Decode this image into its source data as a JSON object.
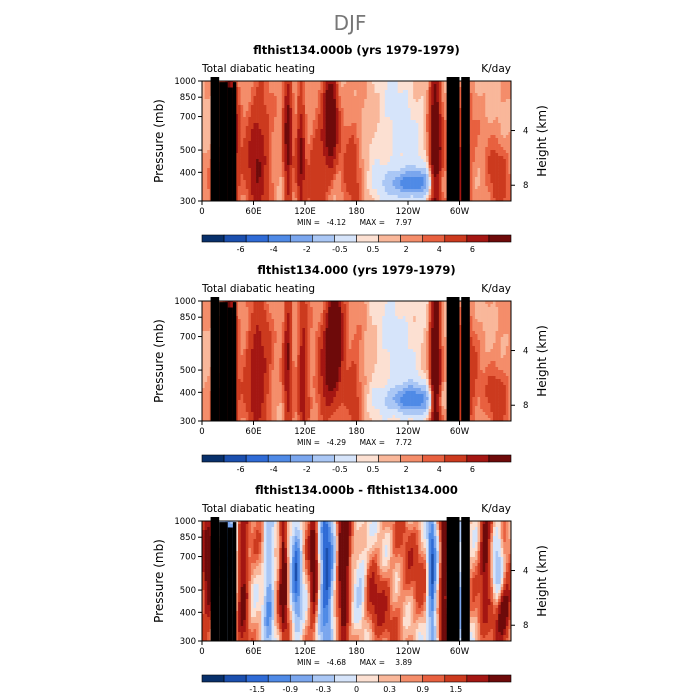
{
  "figure": {
    "title": "DJF"
  },
  "colors": {
    "scale12": [
      "#08306b",
      "#1b4fae",
      "#2f6bd6",
      "#4f8ae6",
      "#7aa6ee",
      "#aac7f5",
      "#d6e4fa",
      "#fce0d2",
      "#f9b79a",
      "#f48d6a",
      "#e8603f",
      "#cc3a1e",
      "#a41612",
      "#6e0a0a"
    ],
    "terrain": "#000000"
  },
  "chart_data": [
    {
      "id": "panel-1",
      "type": "heatmap",
      "title": "flthist134.000b (yrs 1979-1979)",
      "left_label": "Total diabatic heating",
      "right_label": "K/day",
      "xlabel": "",
      "ylabel": "Pressure (mb)",
      "y2label": "Height (km)",
      "x_range": [
        0,
        360
      ],
      "x_ticks": [
        60,
        120,
        180,
        240,
        300
      ],
      "x_tick_labels": [
        "0",
        "60E",
        "120E",
        "180",
        "120W",
        "60W"
      ],
      "y_ticks": [
        1000,
        850,
        700,
        500,
        400,
        300
      ],
      "y_tick_labels": [
        "1000",
        "850",
        "700",
        "500",
        "400",
        "300"
      ],
      "y2_ticks": [
        4,
        8
      ],
      "y2_tick_labels": [
        "4",
        "8"
      ],
      "min_label": "MIN =",
      "min_value": "-4.12",
      "max_label": "MAX =",
      "max_value": "7.97",
      "colorbar_levels": [
        -7,
        -6,
        -5,
        -4,
        -3,
        -2,
        -1,
        -0.5,
        0,
        0.5,
        1,
        2,
        3,
        4,
        5,
        6,
        7
      ],
      "colorbar_labels": [
        "-6",
        "-4",
        "-2",
        "-0.5",
        "0.5",
        "2",
        "4",
        "6"
      ],
      "features": [
        {
          "lon": 32,
          "lev": 0.4,
          "w": 9,
          "h": 0.9,
          "amp": 4.5
        },
        {
          "lon": 20,
          "lev": 0.15,
          "w": 8,
          "h": 0.25,
          "amp": 3.0
        },
        {
          "lon": 65,
          "lev": 0.35,
          "w": 14,
          "h": 0.55,
          "amp": 3.0
        },
        {
          "lon": 100,
          "lev": 0.55,
          "w": 5,
          "h": 0.7,
          "amp": 3.5
        },
        {
          "lon": 115,
          "lev": 0.4,
          "w": 5,
          "h": 0.6,
          "amp": 3.0
        },
        {
          "lon": 150,
          "lev": 0.7,
          "w": 8,
          "h": 0.4,
          "amp": 5.0
        },
        {
          "lon": 135,
          "lev": 0.3,
          "w": 12,
          "h": 0.4,
          "amp": 2.0
        },
        {
          "lon": 175,
          "lev": 0.3,
          "w": 12,
          "h": 0.5,
          "amp": 1.5
        },
        {
          "lon": 245,
          "lev": 0.15,
          "w": 30,
          "h": 0.12,
          "amp": -4.0
        },
        {
          "lon": 272,
          "lev": 0.4,
          "w": 7,
          "h": 0.9,
          "amp": 5.0
        },
        {
          "lon": 300,
          "lev": 0.3,
          "w": 14,
          "h": 0.5,
          "amp": 2.5
        },
        {
          "lon": 345,
          "lev": 0.2,
          "w": 14,
          "h": 0.3,
          "amp": 1.5
        },
        {
          "lon": 230,
          "lev": 0.55,
          "w": 38,
          "h": 0.8,
          "amp": -1.2
        }
      ],
      "terrain": [
        {
          "lon_start": 10,
          "lon_end": 20,
          "top": 1000
        },
        {
          "lon_start": 20,
          "lon_end": 30,
          "top": 950
        },
        {
          "lon_start": 30,
          "lon_end": 36,
          "top": 900
        },
        {
          "lon_start": 36,
          "lon_end": 40,
          "top": 950
        },
        {
          "lon_start": 285,
          "lon_end": 300,
          "top": 1000
        },
        {
          "lon_start": 302,
          "lon_end": 312,
          "top": 1000
        }
      ]
    },
    {
      "id": "panel-2",
      "type": "heatmap",
      "title": "flthist134.000 (yrs 1979-1979)",
      "left_label": "Total diabatic heating",
      "right_label": "K/day",
      "xlabel": "",
      "ylabel": "Pressure (mb)",
      "y2label": "Height (km)",
      "x_range": [
        0,
        360
      ],
      "x_ticks": [
        60,
        120,
        180,
        240,
        300
      ],
      "x_tick_labels": [
        "0",
        "60E",
        "120E",
        "180",
        "120W",
        "60W"
      ],
      "y_ticks": [
        1000,
        850,
        700,
        500,
        400,
        300
      ],
      "y_tick_labels": [
        "1000",
        "850",
        "700",
        "500",
        "400",
        "300"
      ],
      "y2_ticks": [
        4,
        8
      ],
      "y2_tick_labels": [
        "4",
        "8"
      ],
      "min_label": "MIN =",
      "min_value": "-4.29",
      "max_label": "MAX =",
      "max_value": "7.72",
      "colorbar_levels": [
        -7,
        -6,
        -5,
        -4,
        -3,
        -2,
        -1,
        -0.5,
        0,
        0.5,
        1,
        2,
        3,
        4,
        5,
        6,
        7
      ],
      "colorbar_labels": [
        "-6",
        "-4",
        "-2",
        "-0.5",
        "0.5",
        "2",
        "4",
        "6"
      ],
      "features": [
        {
          "lon": 32,
          "lev": 0.45,
          "w": 8,
          "h": 0.95,
          "amp": 4.5
        },
        {
          "lon": 20,
          "lev": 0.15,
          "w": 8,
          "h": 0.25,
          "amp": 2.5
        },
        {
          "lon": 65,
          "lev": 0.4,
          "w": 14,
          "h": 0.55,
          "amp": 3.0
        },
        {
          "lon": 100,
          "lev": 0.55,
          "w": 5,
          "h": 0.7,
          "amp": 3.0
        },
        {
          "lon": 118,
          "lev": 0.4,
          "w": 6,
          "h": 0.6,
          "amp": 3.0
        },
        {
          "lon": 155,
          "lev": 0.75,
          "w": 9,
          "h": 0.4,
          "amp": 6.0
        },
        {
          "lon": 145,
          "lev": 0.35,
          "w": 12,
          "h": 0.4,
          "amp": 2.5
        },
        {
          "lon": 178,
          "lev": 0.3,
          "w": 12,
          "h": 0.5,
          "amp": 1.5
        },
        {
          "lon": 245,
          "lev": 0.18,
          "w": 30,
          "h": 0.12,
          "amp": -4.0
        },
        {
          "lon": 272,
          "lev": 0.45,
          "w": 6,
          "h": 0.95,
          "amp": 5.5
        },
        {
          "lon": 305,
          "lev": 0.3,
          "w": 14,
          "h": 0.5,
          "amp": 2.5
        },
        {
          "lon": 345,
          "lev": 0.2,
          "w": 14,
          "h": 0.3,
          "amp": 1.5
        },
        {
          "lon": 230,
          "lev": 0.6,
          "w": 38,
          "h": 0.8,
          "amp": -1.2
        }
      ],
      "terrain": [
        {
          "lon_start": 10,
          "lon_end": 20,
          "top": 1000
        },
        {
          "lon_start": 20,
          "lon_end": 30,
          "top": 950
        },
        {
          "lon_start": 30,
          "lon_end": 36,
          "top": 900
        },
        {
          "lon_start": 36,
          "lon_end": 40,
          "top": 950
        },
        {
          "lon_start": 285,
          "lon_end": 300,
          "top": 1000
        },
        {
          "lon_start": 302,
          "lon_end": 312,
          "top": 1000
        }
      ]
    },
    {
      "id": "panel-3",
      "type": "heatmap",
      "title": "flthist134.000b - flthist134.000",
      "left_label": "Total diabatic heating",
      "right_label": "K/day",
      "xlabel": "",
      "ylabel": "Pressure (mb)",
      "y2label": "Height (km)",
      "x_range": [
        0,
        360
      ],
      "x_ticks": [
        60,
        120,
        180,
        240,
        300
      ],
      "x_tick_labels": [
        "0",
        "60E",
        "120E",
        "180",
        "120W",
        "60W"
      ],
      "y_ticks": [
        1000,
        850,
        700,
        500,
        400,
        300
      ],
      "y_tick_labels": [
        "1000",
        "850",
        "700",
        "500",
        "400",
        "300"
      ],
      "y2_ticks": [
        4,
        8
      ],
      "y2_tick_labels": [
        "4",
        "8"
      ],
      "min_label": "MIN =",
      "min_value": "-4.68",
      "max_label": "MAX =",
      "max_value": "3.89",
      "colorbar_levels": [
        -2.1,
        -1.8,
        -1.5,
        -1.2,
        -0.9,
        -0.6,
        -0.3,
        -0.15,
        0,
        0.15,
        0.3,
        0.6,
        0.9,
        1.2,
        1.5,
        1.8,
        2.1
      ],
      "colorbar_labels": [
        "-1.5",
        "-0.9",
        "-0.3",
        "0",
        "0.3",
        "0.9",
        "1.5"
      ],
      "features": [
        {
          "lon": 8,
          "lev": 0.55,
          "w": 8,
          "h": 0.4,
          "amp": 1.5
        },
        {
          "lon": 30,
          "lev": 0.6,
          "w": 8,
          "h": 0.55,
          "amp": -1.5
        },
        {
          "lon": 48,
          "lev": 0.55,
          "w": 6,
          "h": 0.5,
          "amp": 1.2
        },
        {
          "lon": 78,
          "lev": 0.45,
          "w": 6,
          "h": 0.6,
          "amp": -1.2
        },
        {
          "lon": 95,
          "lev": 0.6,
          "w": 4,
          "h": 0.6,
          "amp": 1.5
        },
        {
          "lon": 110,
          "lev": 0.55,
          "w": 6,
          "h": 0.6,
          "amp": -1.5
        },
        {
          "lon": 130,
          "lev": 0.6,
          "w": 5,
          "h": 0.55,
          "amp": 1.2
        },
        {
          "lon": 145,
          "lev": 0.55,
          "w": 8,
          "h": 0.65,
          "amp": -2.0
        },
        {
          "lon": 165,
          "lev": 0.7,
          "w": 6,
          "h": 0.5,
          "amp": 2.2
        },
        {
          "lon": 185,
          "lev": 0.5,
          "w": 8,
          "h": 0.4,
          "amp": -0.8
        },
        {
          "lon": 200,
          "lev": 0.3,
          "w": 20,
          "h": 0.3,
          "amp": 0.6
        },
        {
          "lon": 245,
          "lev": 0.6,
          "w": 20,
          "h": 0.4,
          "amp": 0.3
        },
        {
          "lon": 268,
          "lev": 0.5,
          "w": 5,
          "h": 0.8,
          "amp": -1.8
        },
        {
          "lon": 282,
          "lev": 0.55,
          "w": 4,
          "h": 0.8,
          "amp": 1.5
        },
        {
          "lon": 300,
          "lev": 0.5,
          "w": 8,
          "h": 0.6,
          "amp": -1.0
        },
        {
          "lon": 330,
          "lev": 0.7,
          "w": 6,
          "h": 0.4,
          "amp": 1.4
        },
        {
          "lon": 350,
          "lev": 0.25,
          "w": 10,
          "h": 0.25,
          "amp": 1.6
        },
        {
          "lon": 345,
          "lev": 0.6,
          "w": 6,
          "h": 0.4,
          "amp": -1.0
        }
      ],
      "terrain": [
        {
          "lon_start": 10,
          "lon_end": 20,
          "top": 1000
        },
        {
          "lon_start": 20,
          "lon_end": 30,
          "top": 950
        },
        {
          "lon_start": 30,
          "lon_end": 36,
          "top": 900
        },
        {
          "lon_start": 36,
          "lon_end": 40,
          "top": 950
        },
        {
          "lon_start": 285,
          "lon_end": 300,
          "top": 1000
        },
        {
          "lon_start": 302,
          "lon_end": 312,
          "top": 1000
        }
      ]
    }
  ]
}
